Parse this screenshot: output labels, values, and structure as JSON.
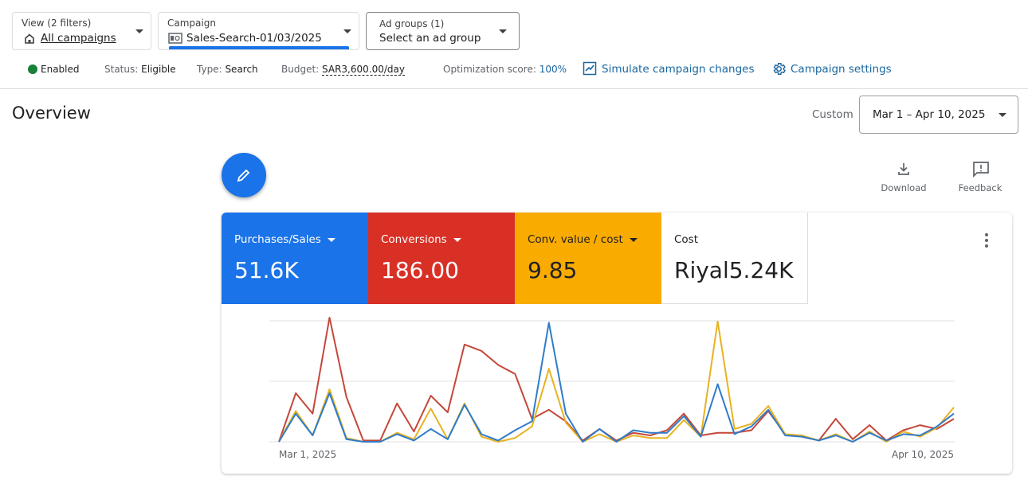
{
  "filters": [
    {
      "label": "View (2 filters)",
      "value": "All campaigns"
    },
    {
      "label": "Campaign",
      "value": "Sales-Search-01/03/2025"
    },
    {
      "label": "Ad groups (1)",
      "value": "Select an ad group"
    }
  ],
  "status": {
    "enabled": "Enabled",
    "items": [
      {
        "label": "Status:",
        "value": "Eligible"
      },
      {
        "label": "Type:",
        "value": "Search"
      },
      {
        "label": "Budget:",
        "value": "SAR3,600.00/day"
      },
      {
        "label": "Optimization score:",
        "value": "100%"
      }
    ],
    "links": [
      "Simulate campaign changes",
      "Campaign settings"
    ]
  },
  "overview": {
    "title": "Overview",
    "range_label": "Custom",
    "range": "Mar 1 – Apr 10, 2025"
  },
  "actions": [
    "Download",
    "Feedback"
  ],
  "scorecards": [
    {
      "label": "Purchases/Sales",
      "value": "51.6K",
      "color": "#1a73e8"
    },
    {
      "label": "Conversions",
      "value": "186.00",
      "color": "#d93025"
    },
    {
      "label": "Conv. value / cost",
      "value": "9.85",
      "color": "#f9ab00"
    },
    {
      "label": "Cost",
      "value": "Riyal5.24K",
      "color": "#ffffff"
    }
  ],
  "chart": {
    "type": "line",
    "x_labels": [
      "Mar 1, 2025",
      "Apr 10, 2025"
    ],
    "series": [
      {
        "color": "#c5473a",
        "values": [
          0,
          38,
          22,
          97,
          35,
          1,
          1,
          30,
          8,
          36,
          23,
          76,
          71,
          60,
          53,
          18,
          25,
          16,
          1,
          10,
          1,
          7,
          5,
          9,
          22,
          5,
          7,
          7,
          9,
          24,
          6,
          4,
          1,
          18,
          2,
          13,
          1,
          9,
          13,
          10,
          18
        ]
      },
      {
        "color": "#e8b220",
        "values": [
          0,
          24,
          5,
          41,
          3,
          0,
          0,
          7,
          2,
          26,
          2,
          30,
          4,
          0,
          3,
          12,
          57,
          15,
          0,
          6,
          0,
          5,
          3,
          3,
          17,
          4,
          94,
          10,
          14,
          28,
          6,
          5,
          1,
          6,
          0,
          8,
          0,
          8,
          4,
          11,
          27
        ]
      },
      {
        "color": "#2f7cc9",
        "values": [
          0,
          22,
          5,
          38,
          2,
          0,
          0,
          6,
          1,
          10,
          2,
          29,
          6,
          1,
          9,
          16,
          93,
          22,
          0,
          10,
          0,
          9,
          7,
          7,
          20,
          4,
          45,
          6,
          12,
          25,
          5,
          4,
          1,
          5,
          0,
          7,
          1,
          6,
          5,
          12,
          22
        ]
      }
    ]
  }
}
